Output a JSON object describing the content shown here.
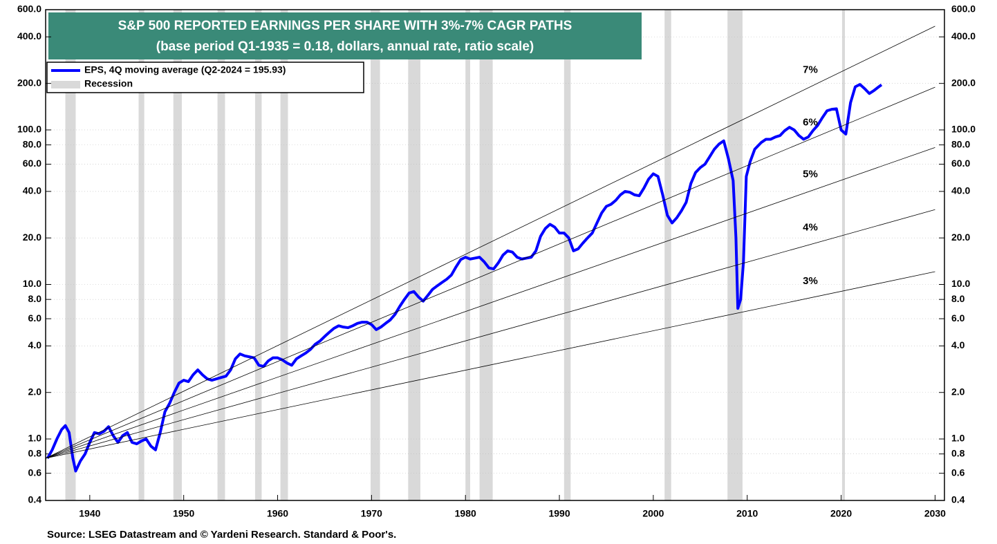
{
  "chart_data": {
    "type": "line",
    "title": "S&P 500 REPORTED EARNINGS PER SHARE WITH 3%-7% CAGR PATHS",
    "subtitle": "(base period Q1-1935 = 0.18, dollars, annual rate, ratio scale)",
    "source": "Source: LSEG Datastream and © Yardeni Research. Standard & Poor's.",
    "ylog": true,
    "grid": true,
    "legend": "upper left",
    "xlim": [
      1935.3,
      2031
    ],
    "ylim": [
      0.4,
      600
    ],
    "xticks": [
      1940,
      1950,
      1960,
      1970,
      1980,
      1990,
      2000,
      2010,
      2020,
      2030
    ],
    "yticks": [
      {
        "value": 0.4,
        "label": "0.4"
      },
      {
        "value": 0.6,
        "label": "0.6"
      },
      {
        "value": 0.8,
        "label": "0.8"
      },
      {
        "value": 1,
        "label": "1.0"
      },
      {
        "value": 2,
        "label": "2.0"
      },
      {
        "value": 4,
        "label": "4.0"
      },
      {
        "value": 6,
        "label": "6.0"
      },
      {
        "value": 8,
        "label": "8.0"
      },
      {
        "value": 10,
        "label": "10.0"
      },
      {
        "value": 20,
        "label": "20.0"
      },
      {
        "value": 40,
        "label": "40.0"
      },
      {
        "value": 60,
        "label": "60.0"
      },
      {
        "value": 80,
        "label": "80.0"
      },
      {
        "value": 100,
        "label": "100.0"
      },
      {
        "value": 200,
        "label": "200.0"
      },
      {
        "value": 400,
        "label": "400.0"
      },
      {
        "value": 600,
        "label": "600.0"
      }
    ],
    "recession_name": "Recession",
    "recession_color": "#d9d9d9",
    "recessions": [
      [
        1937.4,
        1938.5
      ],
      [
        1945.2,
        1945.8
      ],
      [
        1948.9,
        1949.8
      ],
      [
        1953.6,
        1954.4
      ],
      [
        1957.6,
        1958.3
      ],
      [
        1960.3,
        1961.1
      ],
      [
        1969.9,
        1970.9
      ],
      [
        1973.9,
        1975.2
      ],
      [
        1980.0,
        1980.5
      ],
      [
        1981.5,
        1982.9
      ],
      [
        1990.5,
        1991.2
      ],
      [
        2001.2,
        2001.9
      ],
      [
        2007.9,
        2009.5
      ],
      [
        2020.1,
        2020.4
      ]
    ],
    "series": [
      {
        "name": "EPS, 4Q moving average (Q2-2024 = 195.93)",
        "color": "#0000ff",
        "legend": true,
        "x": [
          1935.5,
          1936,
          1936.5,
          1937,
          1937.4,
          1937.8,
          1938.2,
          1938.5,
          1939,
          1939.5,
          1940,
          1940.5,
          1941,
          1941.5,
          1942,
          1942.5,
          1943,
          1943.5,
          1944,
          1944.5,
          1945,
          1945.5,
          1946,
          1946.5,
          1947,
          1947.5,
          1948,
          1948.5,
          1949,
          1949.5,
          1950,
          1950.5,
          1951,
          1951.5,
          1952,
          1952.5,
          1953,
          1953.5,
          1954,
          1954.5,
          1955,
          1955.5,
          1956,
          1956.5,
          1957,
          1957.5,
          1958,
          1958.5,
          1959,
          1959.5,
          1960,
          1960.5,
          1961,
          1961.5,
          1962,
          1962.5,
          1963,
          1963.5,
          1964,
          1964.5,
          1965,
          1965.5,
          1966,
          1966.5,
          1967,
          1967.5,
          1968,
          1968.5,
          1969,
          1969.5,
          1970,
          1970.5,
          1971,
          1971.5,
          1972,
          1972.5,
          1973,
          1973.5,
          1974,
          1974.5,
          1975,
          1975.5,
          1976,
          1976.5,
          1977,
          1977.5,
          1978,
          1978.5,
          1979,
          1979.5,
          1980,
          1980.5,
          1981,
          1981.5,
          1982,
          1982.5,
          1983,
          1983.5,
          1984,
          1984.5,
          1985,
          1985.5,
          1986,
          1986.5,
          1987,
          1987.5,
          1988,
          1988.5,
          1989,
          1989.5,
          1990,
          1990.5,
          1991,
          1991.5,
          1992,
          1992.5,
          1993,
          1993.5,
          1994,
          1994.5,
          1995,
          1995.5,
          1996,
          1996.5,
          1997,
          1997.5,
          1998,
          1998.5,
          1999,
          1999.5,
          2000,
          2000.5,
          2001,
          2001.5,
          2002,
          2002.5,
          2003,
          2003.5,
          2004,
          2004.5,
          2005,
          2005.5,
          2006,
          2006.5,
          2007,
          2007.5,
          2008,
          2008.5,
          2008.8,
          2009,
          2009.3,
          2009.6,
          2009.9,
          2010.3,
          2010.8,
          2011.5,
          2012,
          2012.5,
          2013,
          2013.5,
          2014,
          2014.5,
          2015,
          2015.5,
          2016,
          2016.5,
          2017,
          2017.5,
          2018,
          2018.5,
          2019,
          2019.5,
          2020,
          2020.5,
          2021,
          2021.5,
          2022,
          2022.5,
          2023,
          2023.5,
          2024,
          2024.3
        ],
        "values": [
          0.75,
          0.85,
          1.0,
          1.15,
          1.22,
          1.1,
          0.75,
          0.62,
          0.72,
          0.8,
          0.95,
          1.1,
          1.08,
          1.12,
          1.2,
          1.05,
          0.95,
          1.05,
          1.1,
          0.95,
          0.93,
          0.97,
          1.0,
          0.9,
          0.85,
          1.1,
          1.5,
          1.7,
          2.0,
          2.3,
          2.4,
          2.35,
          2.6,
          2.8,
          2.6,
          2.45,
          2.4,
          2.45,
          2.5,
          2.55,
          2.8,
          3.3,
          3.55,
          3.45,
          3.4,
          3.35,
          3.0,
          2.95,
          3.2,
          3.35,
          3.35,
          3.25,
          3.1,
          3.0,
          3.3,
          3.45,
          3.6,
          3.8,
          4.1,
          4.3,
          4.6,
          4.9,
          5.2,
          5.4,
          5.3,
          5.25,
          5.4,
          5.6,
          5.7,
          5.7,
          5.5,
          5.1,
          5.3,
          5.6,
          5.9,
          6.4,
          7.2,
          8.0,
          8.8,
          9.0,
          8.3,
          7.8,
          8.5,
          9.3,
          9.8,
          10.3,
          10.8,
          11.5,
          13.0,
          14.5,
          15.0,
          14.6,
          14.8,
          15.0,
          14.0,
          12.8,
          12.6,
          13.8,
          15.5,
          16.5,
          16.2,
          15.0,
          14.6,
          14.8,
          15.0,
          16.5,
          20.5,
          23.0,
          24.5,
          23.5,
          21.5,
          21.5,
          20.0,
          16.5,
          17.0,
          18.5,
          20.0,
          21.5,
          25.0,
          29.0,
          32.0,
          33.0,
          35.0,
          38.0,
          40.0,
          39.5,
          38.0,
          37.5,
          42.0,
          48.0,
          52.0,
          50.0,
          38.0,
          28.0,
          25.0,
          27.0,
          30.0,
          34.0,
          45.0,
          53.0,
          57.0,
          60.0,
          67.0,
          75.0,
          81.0,
          85.0,
          65.0,
          47.0,
          20.0,
          7.0,
          8.0,
          14.0,
          50.0,
          62.0,
          75.0,
          83.0,
          87.0,
          87.0,
          90.0,
          92.0,
          99.0,
          104,
          100,
          92,
          87,
          90,
          99,
          107,
          120,
          133,
          136,
          137,
          100,
          94,
          150,
          190,
          197,
          185,
          172,
          180,
          190,
          195.93
        ]
      },
      {
        "name": "7%",
        "color": "#000000",
        "x": [
          1935.3,
          2030
        ],
        "values": [
          0.75,
          469
        ]
      },
      {
        "name": "6%",
        "color": "#000000",
        "x": [
          1935.3,
          2030
        ],
        "values": [
          0.75,
          189
        ]
      },
      {
        "name": "5%",
        "color": "#000000",
        "x": [
          1935.3,
          2030
        ],
        "values": [
          0.75,
          77
        ]
      },
      {
        "name": "4%",
        "color": "#000000",
        "x": [
          1935.3,
          2030
        ],
        "values": [
          0.75,
          30.5
        ]
      },
      {
        "name": "3%",
        "color": "#000000",
        "x": [
          1935.3,
          2030
        ],
        "values": [
          0.75,
          12.1
        ]
      }
    ]
  }
}
